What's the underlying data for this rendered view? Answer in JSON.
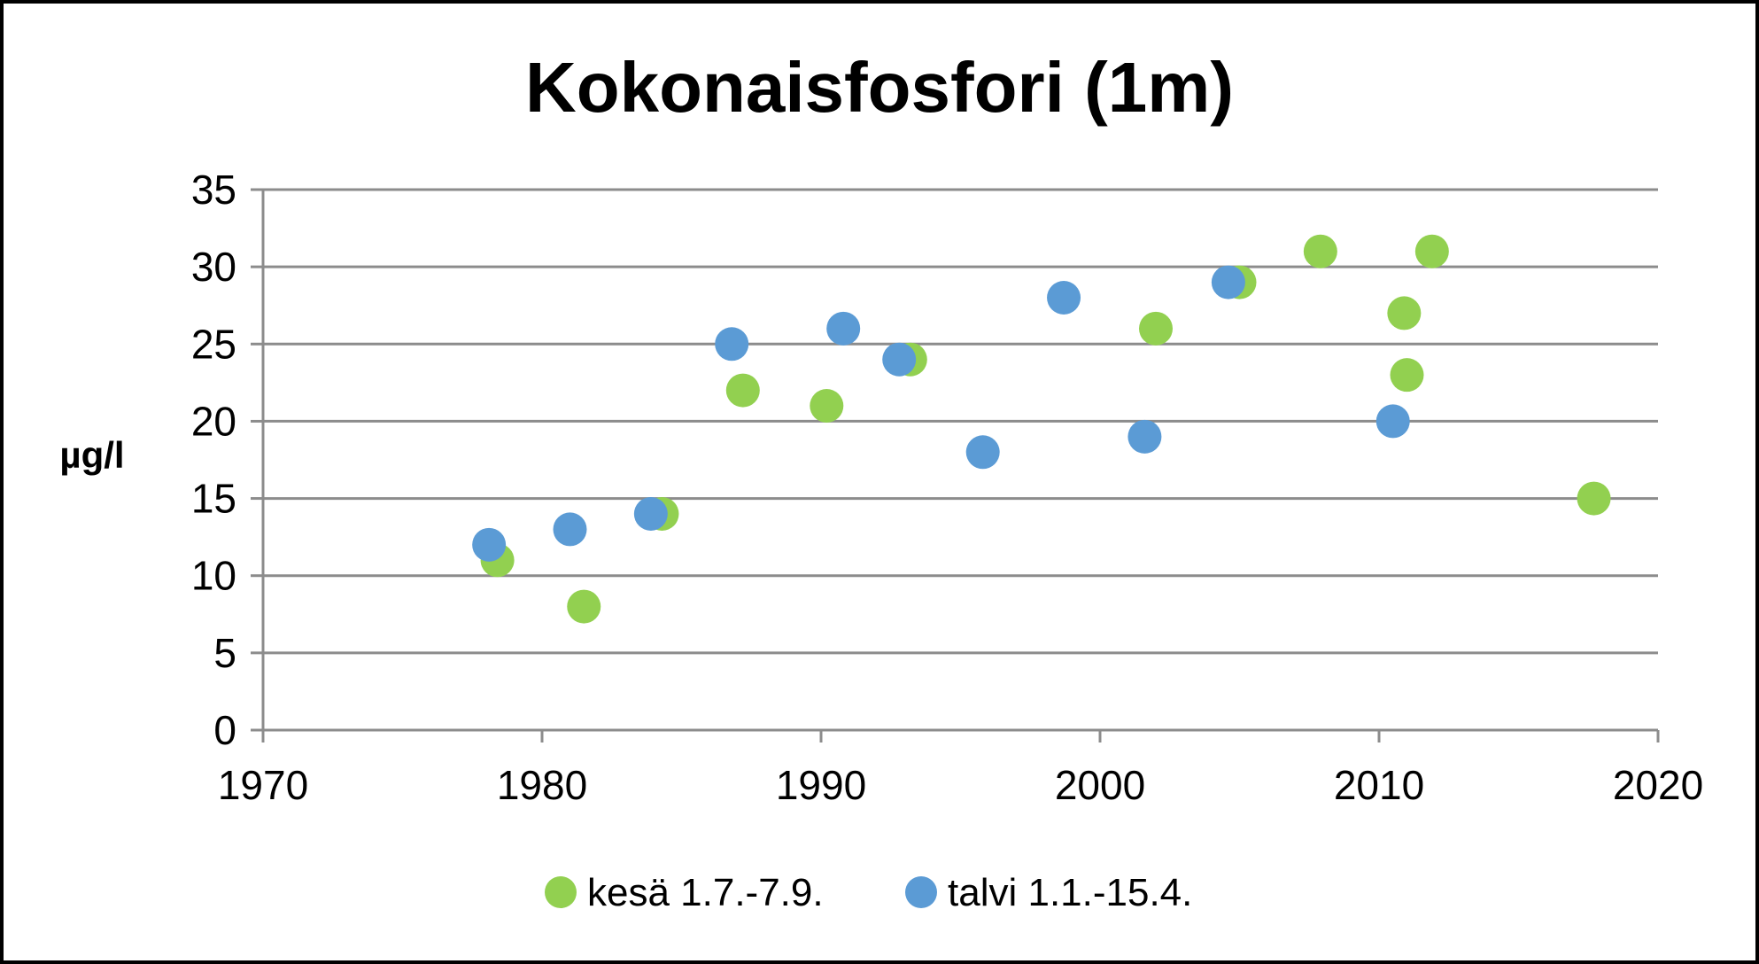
{
  "chart_data": {
    "type": "scatter",
    "title": "Kokonaisfosfori (1m)",
    "ylabel": "µg/l",
    "xlabel": "",
    "xlim": [
      1970,
      2020
    ],
    "ylim": [
      0,
      35
    ],
    "x_ticks": [
      1970,
      1980,
      1990,
      2000,
      2010,
      2020
    ],
    "y_ticks": [
      0,
      5,
      10,
      15,
      20,
      25,
      30,
      35
    ],
    "grid": true,
    "legend_position": "bottom",
    "series": [
      {
        "name": "kesä 1.7.-7.9.",
        "color": "#92D050",
        "points": [
          {
            "x": 1978.4,
            "y": 11
          },
          {
            "x": 1981.5,
            "y": 8
          },
          {
            "x": 1984.3,
            "y": 14
          },
          {
            "x": 1987.2,
            "y": 22
          },
          {
            "x": 1990.2,
            "y": 21
          },
          {
            "x": 1993.2,
            "y": 24
          },
          {
            "x": 2002.0,
            "y": 26
          },
          {
            "x": 2005.0,
            "y": 29
          },
          {
            "x": 2007.9,
            "y": 31
          },
          {
            "x": 2010.9,
            "y": 27
          },
          {
            "x": 2011.0,
            "y": 23
          },
          {
            "x": 2011.9,
            "y": 31
          },
          {
            "x": 2017.7,
            "y": 15
          }
        ]
      },
      {
        "name": "talvi 1.1.-15.4.",
        "color": "#5B9BD5",
        "points": [
          {
            "x": 1978.1,
            "y": 12
          },
          {
            "x": 1981.0,
            "y": 13
          },
          {
            "x": 1983.9,
            "y": 14
          },
          {
            "x": 1986.8,
            "y": 25
          },
          {
            "x": 1990.8,
            "y": 26
          },
          {
            "x": 1992.8,
            "y": 24
          },
          {
            "x": 1995.8,
            "y": 18
          },
          {
            "x": 1998.7,
            "y": 28
          },
          {
            "x": 2001.6,
            "y": 19
          },
          {
            "x": 2004.6,
            "y": 29
          },
          {
            "x": 2010.5,
            "y": 20
          }
        ]
      }
    ]
  }
}
